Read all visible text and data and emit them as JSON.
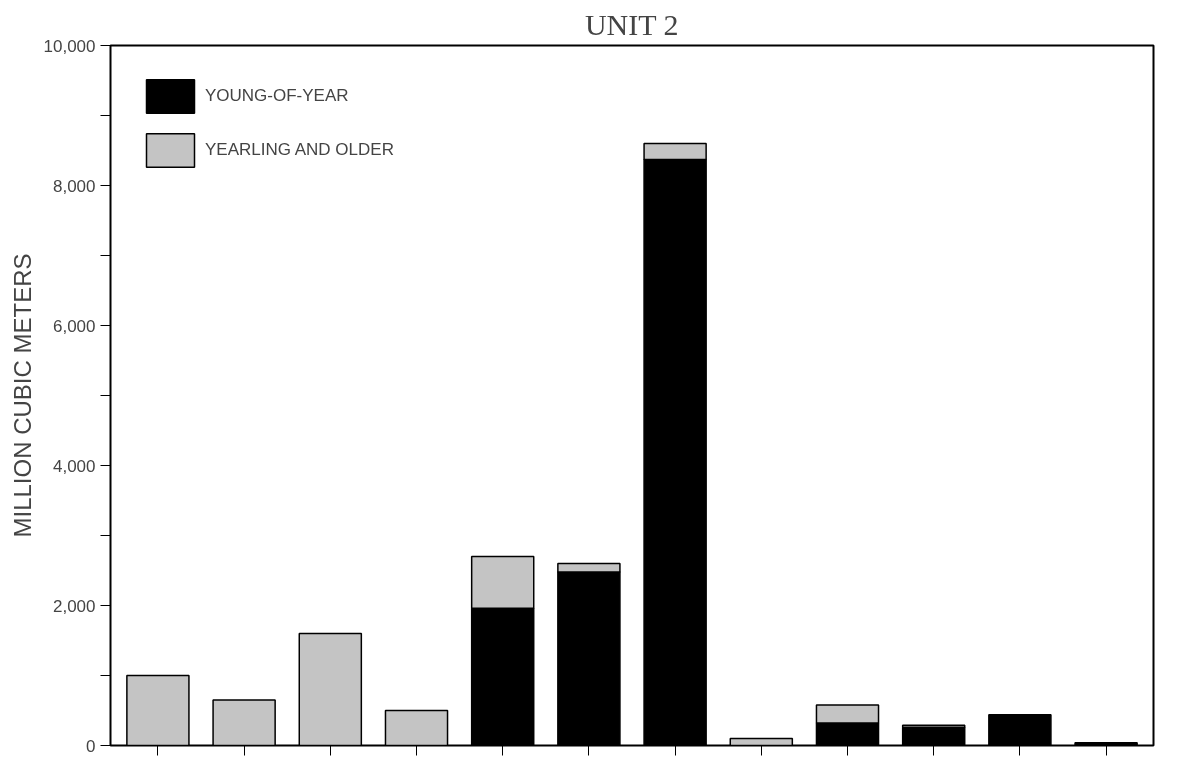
{
  "chart_data": {
    "type": "bar",
    "title": "UNIT 2",
    "ylabel": "MILLION CUBIC METERS",
    "categories": [
      null,
      null,
      null,
      null,
      null,
      null,
      null,
      null,
      null,
      null,
      null,
      null
    ],
    "stacked": true,
    "series": [
      {
        "name": "YOUNG-OF-YEAR",
        "color": "#000000",
        "values": [
          null,
          null,
          null,
          null,
          1960,
          2480,
          8370,
          null,
          320,
          260,
          440,
          40
        ]
      },
      {
        "name": "YEARLING AND OLDER",
        "color": "#c4c4c4",
        "values": [
          1000,
          650,
          1600,
          500,
          740,
          120,
          230,
          100,
          260,
          30,
          null,
          null
        ]
      }
    ],
    "ylim": [
      0,
      10000
    ],
    "yticks": [
      {
        "value": 0,
        "label": "0"
      },
      {
        "value": 1000,
        "label": null
      },
      {
        "value": 2000,
        "label": "2,000"
      },
      {
        "value": 3000,
        "label": null
      },
      {
        "value": 4000,
        "label": "4,000"
      },
      {
        "value": 5000,
        "label": null
      },
      {
        "value": 6000,
        "label": "6,000"
      },
      {
        "value": 7000,
        "label": null
      },
      {
        "value": 8000,
        "label": "8,000"
      },
      {
        "value": 9000,
        "label": null
      },
      {
        "value": 10000,
        "label": "10,000"
      }
    ],
    "grid": false,
    "legend": "top left"
  }
}
